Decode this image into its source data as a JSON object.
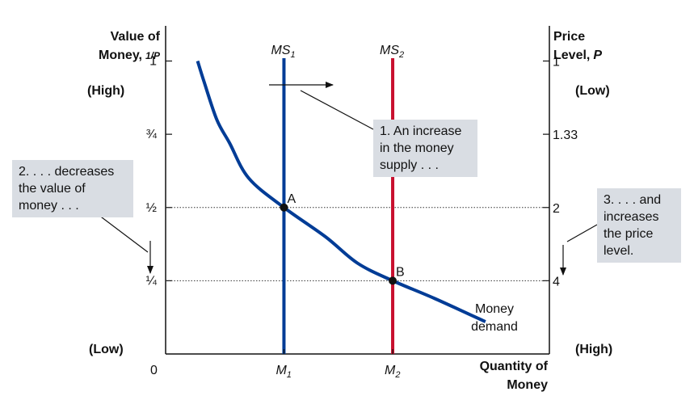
{
  "chart_data": {
    "type": "line",
    "left_axis": {
      "title_line1": "Value of",
      "title_line2": "Money,",
      "title_unit": "1/P"
    },
    "right_axis": {
      "title_line1": "Price",
      "title_line2": "Level,",
      "title_unit": "P"
    },
    "x_axis": {
      "title_line1": "Quantity of",
      "title_line2": "Money"
    },
    "value_ticks": [
      "1",
      "¾",
      "½",
      "¼"
    ],
    "value_tick_values": [
      1,
      0.75,
      0.5,
      0.25
    ],
    "price_ticks": [
      "1",
      "1.33",
      "2",
      "4"
    ],
    "origin_label": "0",
    "high_left": "(High)",
    "low_left": "(Low)",
    "low_right": "(Low)",
    "high_right": "(High)",
    "x_range": [
      0,
      6
    ],
    "y_range": [
      0,
      1.12
    ],
    "money_supply": [
      {
        "name": "MS",
        "sub": "1",
        "x": 1.85,
        "color": "#003c96"
      },
      {
        "name": "MS",
        "sub": "2",
        "x": 3.55,
        "color": "#c8102e"
      }
    ],
    "quantity_labels": [
      {
        "name": "M",
        "sub": "1",
        "x": 1.85
      },
      {
        "name": "M",
        "sub": "2",
        "x": 3.55
      }
    ],
    "money_demand": {
      "label_line1": "Money",
      "label_line2": "demand",
      "color": "#003c96",
      "points": [
        [
          0.5,
          1.0
        ],
        [
          0.6,
          0.93
        ],
        [
          0.8,
          0.8
        ],
        [
          1.0,
          0.72
        ],
        [
          1.3,
          0.6
        ],
        [
          1.85,
          0.5
        ],
        [
          2.5,
          0.4
        ],
        [
          3.0,
          0.31
        ],
        [
          3.55,
          0.25
        ],
        [
          4.2,
          0.19
        ],
        [
          5.0,
          0.11
        ]
      ]
    },
    "equilibria": [
      {
        "label": "A",
        "x": 1.85,
        "y": 0.5
      },
      {
        "label": "B",
        "x": 3.55,
        "y": 0.25
      }
    ],
    "annotations": {
      "increase": "1. An increase\nin the money\nsupply . . .",
      "decrease": "2. . . . decreases\nthe value of\nmoney . . .",
      "price": "3. . . . and\nincreases\nthe price\nlevel."
    }
  }
}
